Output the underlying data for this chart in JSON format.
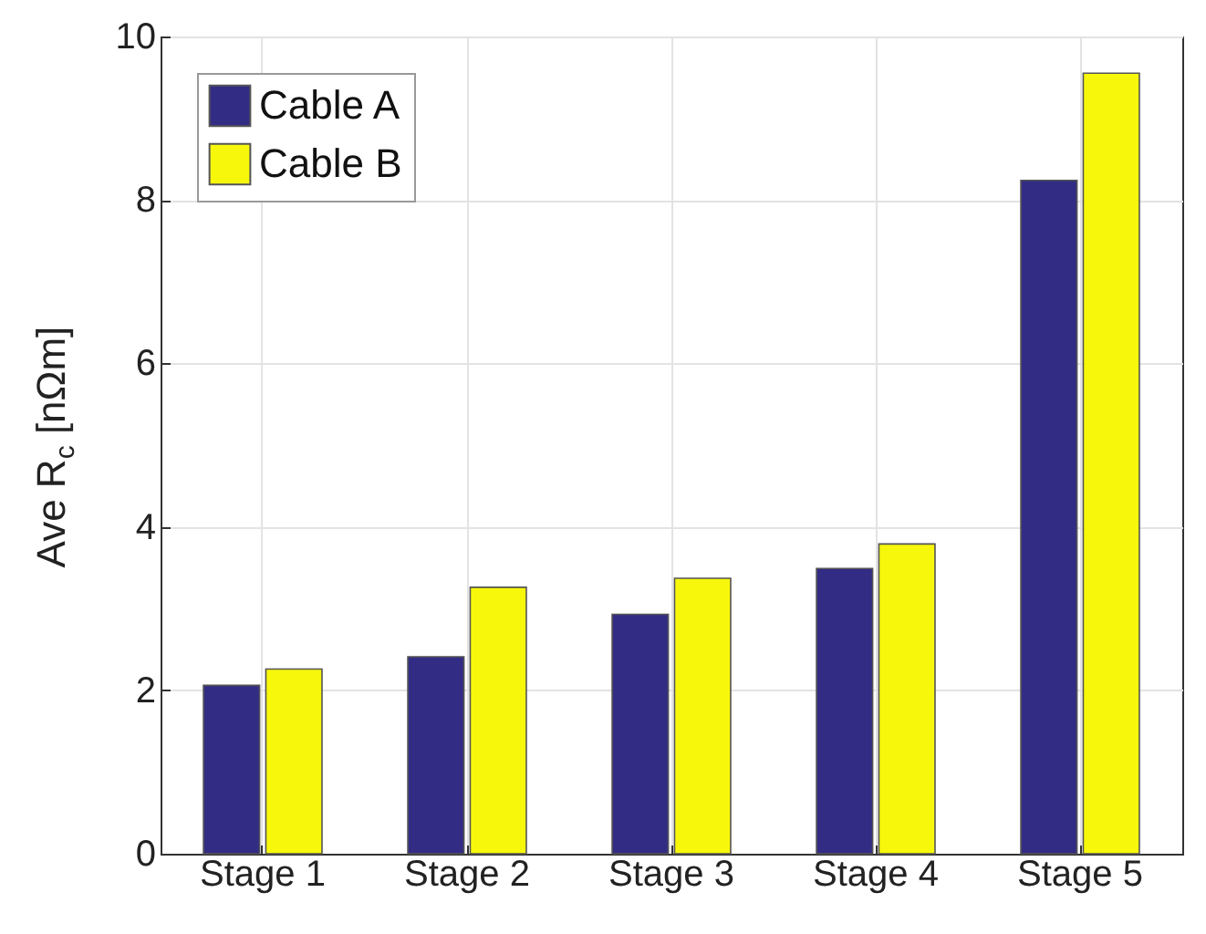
{
  "chart_data": {
    "type": "bar",
    "ylabel": "Ave R$_{c}$ [nΩm]",
    "categories": [
      "Stage 1",
      "Stage 2",
      "Stage 3",
      "Stage 4",
      "Stage 5"
    ],
    "series": [
      {
        "name": "Cable A",
        "color": "#332c84",
        "values": [
          2.06,
          2.41,
          2.93,
          3.49,
          8.24
        ]
      },
      {
        "name": "Cable B",
        "color": "#f7f70c",
        "values": [
          2.26,
          3.26,
          3.37,
          3.79,
          9.55
        ]
      }
    ],
    "ylim": [
      0,
      10
    ],
    "yticks": [
      0,
      2,
      4,
      6,
      8,
      10
    ],
    "grid": true,
    "legend": "top left"
  }
}
